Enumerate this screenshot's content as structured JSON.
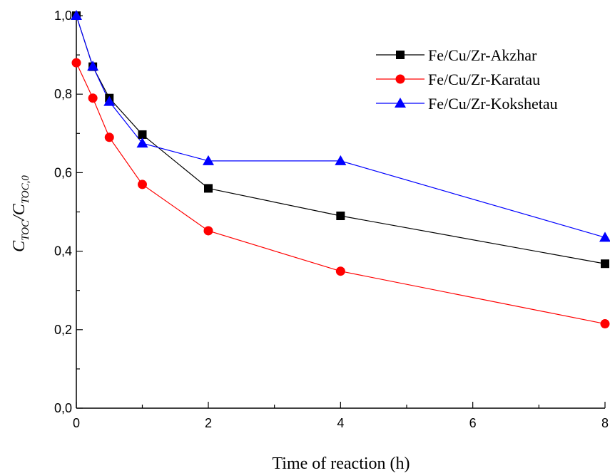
{
  "chart_data": {
    "type": "line",
    "xlabel": "Time of reaction (h)",
    "ylabel": {
      "main": "C",
      "sub1": "TOC",
      "slash": "/",
      "main2": "C",
      "sub2": "TOC,0"
    },
    "x_ticks": [
      "0",
      "2",
      "4",
      "6",
      "8"
    ],
    "y_ticks": [
      "0,0",
      "0,2",
      "0,4",
      "0,6",
      "0,8",
      "1,0"
    ],
    "xlim": [
      0,
      8
    ],
    "ylim": [
      0,
      1.0
    ],
    "x_scale": "piecewise: 0 to 2 linear (2 at one third of axis), 2 to 8 linear",
    "grid": false,
    "legend_position": "top-right",
    "series": [
      {
        "name": "Fe/Cu/Zr-Akzhar",
        "color": "#000000",
        "marker": "square",
        "x": [
          0,
          0.25,
          0.5,
          1,
          2,
          4,
          8
        ],
        "y": [
          1.0,
          0.87,
          0.79,
          0.697,
          0.56,
          0.49,
          0.368
        ]
      },
      {
        "name": "Fe/Cu/Zr-Karatau",
        "color": "#ff0000",
        "marker": "circle",
        "x": [
          0,
          0.25,
          0.5,
          1,
          2,
          4,
          8
        ],
        "y": [
          0.88,
          0.79,
          0.69,
          0.57,
          0.452,
          0.349,
          0.215
        ]
      },
      {
        "name": "Fe/Cu/Zr-Kokshetau",
        "color": "#0000ff",
        "marker": "triangle",
        "x": [
          0,
          0.25,
          0.5,
          1,
          2,
          4,
          8
        ],
        "y": [
          1.0,
          0.871,
          0.781,
          0.675,
          0.63,
          0.63,
          0.435
        ]
      }
    ]
  }
}
